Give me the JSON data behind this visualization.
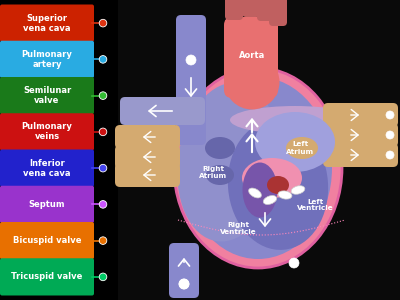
{
  "background_color": "#000000",
  "labels": [
    {
      "text": "Superior\nvena cava",
      "color": "#cc2200",
      "dot_color": "#dd3311"
    },
    {
      "text": "Pulmonary\nartery",
      "color": "#29abe2",
      "dot_color": "#29abe2"
    },
    {
      "text": "Semilunar\nvalve",
      "color": "#1a7a1a",
      "dot_color": "#33bb33"
    },
    {
      "text": "Pulmonary\nveins",
      "color": "#cc1111",
      "dot_color": "#cc1111"
    },
    {
      "text": "Inferior\nvena cava",
      "color": "#2222cc",
      "dot_color": "#4444ee"
    },
    {
      "text": "Septum",
      "color": "#9933cc",
      "dot_color": "#cc55ff"
    },
    {
      "text": "Bicuspid valve",
      "color": "#e87000",
      "dot_color": "#e87000"
    },
    {
      "text": "Tricuspid valve",
      "color": "#00aa55",
      "dot_color": "#00cc66"
    }
  ],
  "heart_bg": "#0a0a0a",
  "pink_outer": "#f080a0",
  "pink_border": "#e060a0",
  "blue_main": "#8888cc",
  "blue_light": "#aaaadd",
  "purple_mid": "#9966bb",
  "aorta_color": "#e87070",
  "tan_tube": "#d4aa70",
  "red_dark": "#aa3333",
  "white": "#ffffff",
  "pink_light": "#f8b8d0"
}
